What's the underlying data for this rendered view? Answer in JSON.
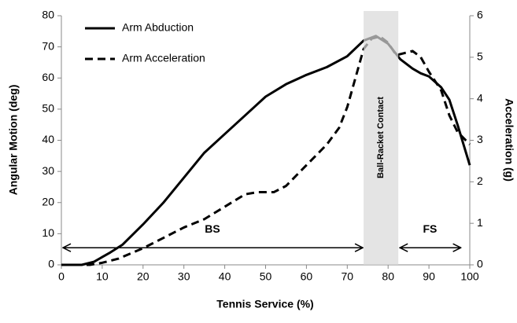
{
  "chart_data": {
    "type": "line",
    "xlabel": "Tennis Service (%)",
    "ylabel": "Angular Motion (deg)",
    "y2label": "Acceleration (g)",
    "xlim": [
      0,
      100
    ],
    "xticks": [
      0,
      10,
      20,
      30,
      40,
      50,
      60,
      70,
      80,
      90,
      100
    ],
    "ylim": [
      0,
      80
    ],
    "yticks": [
      0,
      10,
      20,
      30,
      40,
      50,
      60,
      70,
      80
    ],
    "y2lim": [
      0,
      6
    ],
    "y2ticks": [
      0,
      1,
      2,
      3,
      4,
      5,
      6
    ],
    "legend": "upper left",
    "grid": false,
    "series": [
      {
        "name": "Arm Abduction",
        "color": "#000000",
        "dash": false,
        "x": [
          0,
          5,
          8,
          10,
          12,
          15,
          20,
          25,
          30,
          35,
          40,
          45,
          50,
          55,
          60,
          65,
          70,
          74,
          77,
          80,
          83,
          86,
          88,
          90,
          93,
          95,
          97,
          100
        ],
        "values": [
          0,
          0,
          1,
          2.5,
          4,
          6.5,
          13,
          20,
          28,
          36,
          42,
          48,
          54,
          58,
          61,
          63.5,
          67,
          72,
          73.5,
          71,
          66,
          63,
          61.5,
          60.5,
          57,
          53,
          45,
          32
        ]
      },
      {
        "name": "Arm Acceleration",
        "color": "#000000",
        "dash": true,
        "axis": "y2",
        "x": [
          0,
          7,
          10,
          14,
          20,
          25,
          30,
          35,
          40,
          45,
          48,
          52,
          55,
          60,
          65,
          68,
          70,
          72,
          74,
          76,
          78,
          80,
          82,
          84,
          86,
          88,
          90,
          93,
          95,
          97,
          100
        ],
        "values": [
          0,
          0,
          0.05,
          0.15,
          0.4,
          0.65,
          0.9,
          1.1,
          1.4,
          1.7,
          1.75,
          1.75,
          1.9,
          2.4,
          2.9,
          3.3,
          3.8,
          4.5,
          5.2,
          5.45,
          5.5,
          5.35,
          5.05,
          5.1,
          5.15,
          5.0,
          4.65,
          4.2,
          3.6,
          3.2,
          2.9
        ]
      }
    ],
    "shaded_region": {
      "label": "Ball-Racket Contact",
      "x": [
        74,
        82.5
      ]
    },
    "arrows": [
      {
        "label": "BS",
        "x": [
          0,
          74
        ],
        "y": 5.5
      },
      {
        "label": "FS",
        "x": [
          82.5,
          98
        ],
        "y": 5.5
      }
    ]
  }
}
